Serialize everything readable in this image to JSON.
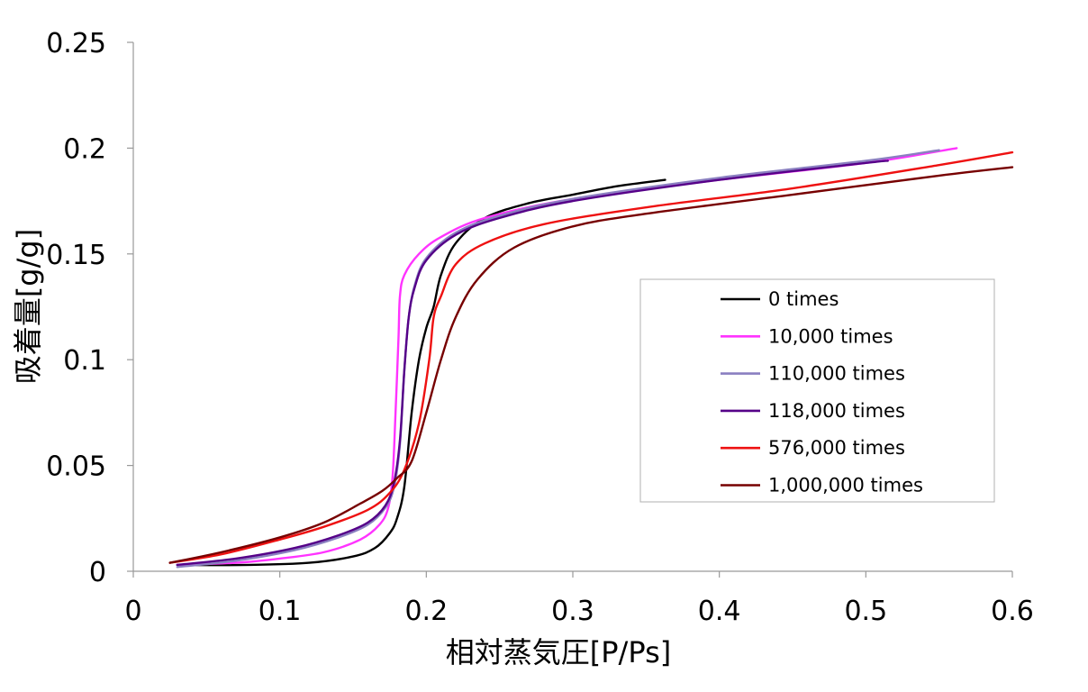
{
  "chart_data": {
    "type": "line",
    "title": "",
    "xlabel": "相対蒸気圧[P/Ps]",
    "ylabel": "吸着量[g/g]",
    "xlim": [
      0,
      0.6
    ],
    "ylim": [
      0,
      0.25
    ],
    "xticks": [
      "0",
      "0.1",
      "0.2",
      "0.3",
      "0.4",
      "0.5",
      "0.6"
    ],
    "yticks": [
      "0",
      "0.05",
      "0.1",
      "0.15",
      "0.2",
      "0.25"
    ],
    "legend_position": "right",
    "series": [
      {
        "name": "0 times",
        "color": "#000000",
        "points": [
          [
            0.03,
            0.003
          ],
          [
            0.08,
            0.003
          ],
          [
            0.12,
            0.004
          ],
          [
            0.15,
            0.007
          ],
          [
            0.165,
            0.011
          ],
          [
            0.175,
            0.018
          ],
          [
            0.18,
            0.025
          ],
          [
            0.185,
            0.04
          ],
          [
            0.19,
            0.075
          ],
          [
            0.195,
            0.1
          ],
          [
            0.2,
            0.115
          ],
          [
            0.205,
            0.125
          ],
          [
            0.21,
            0.14
          ],
          [
            0.22,
            0.155
          ],
          [
            0.24,
            0.167
          ],
          [
            0.27,
            0.174
          ],
          [
            0.3,
            0.178
          ],
          [
            0.33,
            0.182
          ],
          [
            0.363,
            0.185
          ]
        ]
      },
      {
        "name": "10,000 times",
        "color": "#ff33ff",
        "points": [
          [
            0.03,
            0.003
          ],
          [
            0.07,
            0.004
          ],
          [
            0.1,
            0.006
          ],
          [
            0.13,
            0.009
          ],
          [
            0.155,
            0.015
          ],
          [
            0.168,
            0.022
          ],
          [
            0.174,
            0.03
          ],
          [
            0.177,
            0.045
          ],
          [
            0.179,
            0.075
          ],
          [
            0.181,
            0.11
          ],
          [
            0.182,
            0.13
          ],
          [
            0.185,
            0.14
          ],
          [
            0.195,
            0.15
          ],
          [
            0.21,
            0.158
          ],
          [
            0.24,
            0.167
          ],
          [
            0.3,
            0.176
          ],
          [
            0.4,
            0.185
          ],
          [
            0.5,
            0.193
          ],
          [
            0.562,
            0.2
          ]
        ]
      },
      {
        "name": "110,000 times",
        "color": "#8a7fc0",
        "points": [
          [
            0.03,
            0.002
          ],
          [
            0.07,
            0.005
          ],
          [
            0.11,
            0.01
          ],
          [
            0.14,
            0.016
          ],
          [
            0.16,
            0.022
          ],
          [
            0.172,
            0.03
          ],
          [
            0.178,
            0.04
          ],
          [
            0.182,
            0.06
          ],
          [
            0.185,
            0.095
          ],
          [
            0.188,
            0.12
          ],
          [
            0.192,
            0.135
          ],
          [
            0.2,
            0.148
          ],
          [
            0.22,
            0.16
          ],
          [
            0.25,
            0.168
          ],
          [
            0.3,
            0.176
          ],
          [
            0.4,
            0.186
          ],
          [
            0.5,
            0.194
          ],
          [
            0.55,
            0.199
          ]
        ]
      },
      {
        "name": "118,000 times",
        "color": "#550088",
        "points": [
          [
            0.03,
            0.003
          ],
          [
            0.07,
            0.006
          ],
          [
            0.11,
            0.011
          ],
          [
            0.14,
            0.017
          ],
          [
            0.16,
            0.023
          ],
          [
            0.172,
            0.031
          ],
          [
            0.178,
            0.042
          ],
          [
            0.182,
            0.062
          ],
          [
            0.185,
            0.095
          ],
          [
            0.188,
            0.12
          ],
          [
            0.192,
            0.134
          ],
          [
            0.2,
            0.147
          ],
          [
            0.22,
            0.159
          ],
          [
            0.25,
            0.167
          ],
          [
            0.3,
            0.175
          ],
          [
            0.4,
            0.185
          ],
          [
            0.5,
            0.193
          ],
          [
            0.515,
            0.194
          ]
        ]
      },
      {
        "name": "576,000 times",
        "color": "#ee1111",
        "points": [
          [
            0.025,
            0.004
          ],
          [
            0.06,
            0.008
          ],
          [
            0.1,
            0.015
          ],
          [
            0.13,
            0.021
          ],
          [
            0.16,
            0.029
          ],
          [
            0.175,
            0.037
          ],
          [
            0.185,
            0.048
          ],
          [
            0.195,
            0.07
          ],
          [
            0.202,
            0.1
          ],
          [
            0.205,
            0.12
          ],
          [
            0.21,
            0.13
          ],
          [
            0.22,
            0.145
          ],
          [
            0.24,
            0.155
          ],
          [
            0.28,
            0.164
          ],
          [
            0.35,
            0.172
          ],
          [
            0.45,
            0.181
          ],
          [
            0.55,
            0.192
          ],
          [
            0.6,
            0.198
          ]
        ]
      },
      {
        "name": "1,000,000 times",
        "color": "#770000",
        "points": [
          [
            0.025,
            0.004
          ],
          [
            0.06,
            0.009
          ],
          [
            0.1,
            0.016
          ],
          [
            0.13,
            0.023
          ],
          [
            0.155,
            0.032
          ],
          [
            0.17,
            0.038
          ],
          [
            0.18,
            0.044
          ],
          [
            0.19,
            0.052
          ],
          [
            0.2,
            0.075
          ],
          [
            0.21,
            0.1
          ],
          [
            0.22,
            0.12
          ],
          [
            0.235,
            0.138
          ],
          [
            0.26,
            0.153
          ],
          [
            0.3,
            0.163
          ],
          [
            0.35,
            0.169
          ],
          [
            0.45,
            0.178
          ],
          [
            0.55,
            0.187
          ],
          [
            0.6,
            0.191
          ]
        ]
      }
    ]
  }
}
